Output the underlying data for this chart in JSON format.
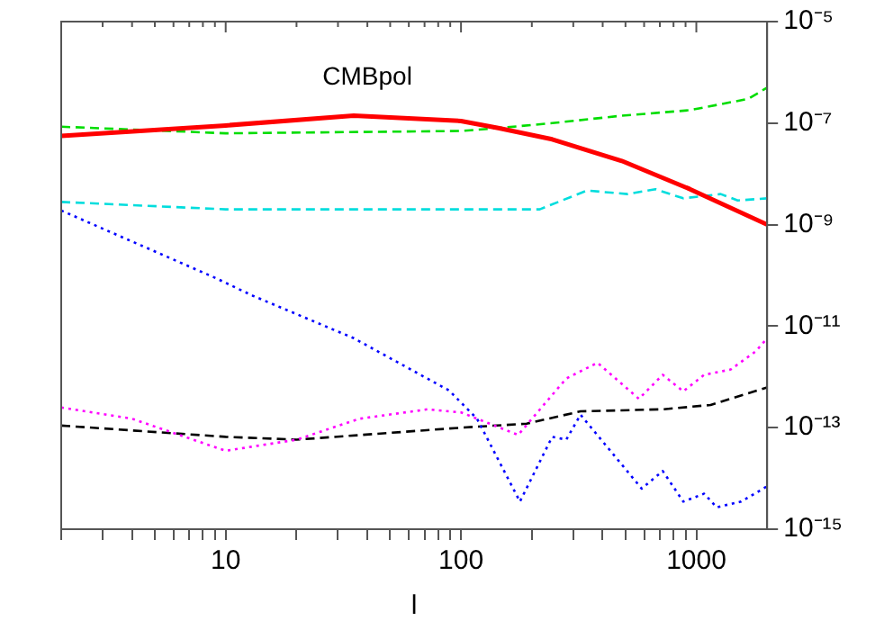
{
  "chart_data": {
    "type": "line",
    "title": "CMBpol",
    "xlabel": "l",
    "log": "xy",
    "grid": false,
    "legend": false,
    "marker": "none",
    "xlim": [
      2,
      2000
    ],
    "xticks": [
      {
        "value": 2,
        "label": null
      },
      {
        "value": 3,
        "label": null
      },
      {
        "value": 4,
        "label": null
      },
      {
        "value": 5,
        "label": null
      },
      {
        "value": 6,
        "label": null
      },
      {
        "value": 7,
        "label": null
      },
      {
        "value": 8,
        "label": null
      },
      {
        "value": 9,
        "label": null
      },
      10,
      {
        "value": 20,
        "label": null
      },
      {
        "value": 30,
        "label": null
      },
      {
        "value": 40,
        "label": null
      },
      {
        "value": 50,
        "label": null
      },
      {
        "value": 60,
        "label": null
      },
      {
        "value": 70,
        "label": null
      },
      {
        "value": 80,
        "label": null
      },
      {
        "value": 90,
        "label": null
      },
      100,
      {
        "value": 200,
        "label": null
      },
      {
        "value": 300,
        "label": null
      },
      {
        "value": 400,
        "label": null
      },
      {
        "value": 500,
        "label": null
      },
      {
        "value": 600,
        "label": null
      },
      {
        "value": 700,
        "label": null
      },
      {
        "value": 800,
        "label": null
      },
      {
        "value": 900,
        "label": null
      },
      1000
    ],
    "ylim": [
      1e-15,
      1e-05
    ],
    "yticks": [
      {
        "value": 1e-15,
        "label": "10⁻¹⁵"
      },
      {
        "value": 1e-13,
        "label": "10⁻¹³"
      },
      {
        "value": 1e-11,
        "label": "10⁻¹¹"
      },
      {
        "value": 1e-09,
        "label": "10⁻⁹"
      },
      {
        "value": 1e-07,
        "label": "10⁻⁷"
      },
      {
        "value": 1e-05,
        "label": "10⁻⁵"
      }
    ],
    "series": [
      {
        "color": "#ff0000",
        "line_style": "solid",
        "x": [
          2,
          10,
          35,
          100,
          144,
          244,
          482,
          940,
          2000
        ],
        "values": [
          5.6e-08,
          9e-08,
          1.4e-07,
          1.1e-07,
          8e-08,
          4.8e-08,
          1.8e-08,
          5e-09,
          1e-09
        ]
      },
      {
        "color": "#00dd00",
        "line_style": "dashed",
        "x": [
          2,
          10,
          100,
          144,
          244,
          482,
          940,
          1660,
          2000
        ],
        "values": [
          8.5e-08,
          6.3e-08,
          7e-08,
          8e-08,
          1e-07,
          1.4e-07,
          1.8e-07,
          3e-07,
          5e-07
        ]
      },
      {
        "color": "#00dddd",
        "line_style": "dashed",
        "x": [
          2,
          10,
          100,
          216,
          343,
          510,
          670,
          880,
          1270,
          1500,
          2000
        ],
        "values": [
          2.8e-09,
          2e-09,
          2e-09,
          2e-09,
          4.7e-09,
          4e-09,
          5e-09,
          3.3e-09,
          4e-09,
          3e-09,
          3.3e-09
        ]
      },
      {
        "color": "#0000ff",
        "line_style": "dotted",
        "x": [
          2,
          9,
          13,
          35,
          89,
          117,
          178,
          244,
          280,
          322,
          586,
          720,
          880,
          1080,
          1220,
          1550,
          2000
        ],
        "values": [
          1.9e-09,
          9e-11,
          4e-11,
          5.8e-12,
          5.4e-13,
          1.5e-13,
          3.5e-15,
          6.6e-14,
          5.8e-14,
          1.8e-13,
          6.3e-15,
          1.4e-14,
          3.5e-15,
          5e-15,
          2.7e-15,
          3.5e-15,
          7e-15
        ]
      },
      {
        "color": "#ff00ff",
        "line_style": "dotted",
        "x": [
          2,
          4,
          10,
          20,
          37,
          72,
          100,
          175,
          280,
          380,
          570,
          720,
          880,
          1080,
          1400,
          1790,
          2000
        ],
        "values": [
          2.5e-13,
          1.5e-13,
          3.5e-14,
          5.8e-14,
          1.5e-13,
          2.3e-13,
          2e-13,
          7.2e-14,
          9.3e-13,
          1.9e-12,
          3.7e-13,
          1.1e-12,
          5.2e-13,
          1.1e-12,
          1.4e-12,
          3.2e-12,
          5.8e-12
        ]
      },
      {
        "color": "#000000",
        "line_style": "dashed",
        "x": [
          2,
          10,
          20,
          100,
          190,
          322,
          720,
          1150,
          2000
        ],
        "values": [
          1.1e-13,
          6.6e-14,
          5.8e-14,
          1e-13,
          1.2e-13,
          2.1e-13,
          2.3e-13,
          2.8e-13,
          6.2e-13
        ]
      }
    ]
  }
}
